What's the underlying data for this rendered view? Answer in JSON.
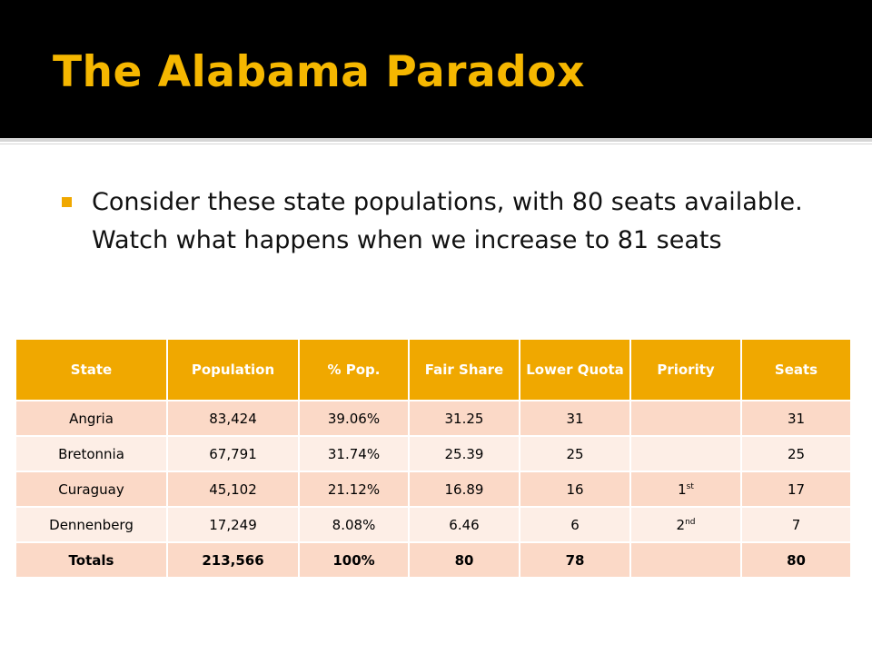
{
  "slide": {
    "title": "The Alabama Paradox",
    "bullet": "Consider these state populations, with 80 seats available.  Watch what happens when we increase to 81 seats"
  },
  "table": {
    "headers": [
      "State",
      "Population",
      "% Pop.",
      "Fair Share",
      "Lower Quota",
      "Priority",
      "Seats"
    ],
    "rows": [
      {
        "state": "Angria",
        "population": "83,424",
        "pct": "39.06%",
        "fair_share": "31.25",
        "lower_quota": "31",
        "priority_num": "",
        "priority_sup": "",
        "seats": "31"
      },
      {
        "state": "Bretonnia",
        "population": "67,791",
        "pct": "31.74%",
        "fair_share": "25.39",
        "lower_quota": "25",
        "priority_num": "",
        "priority_sup": "",
        "seats": "25"
      },
      {
        "state": "Curaguay",
        "population": "45,102",
        "pct": "21.12%",
        "fair_share": "16.89",
        "lower_quota": "16",
        "priority_num": "1",
        "priority_sup": "st",
        "seats": "17"
      },
      {
        "state": "Dennenberg",
        "population": "17,249",
        "pct": "8.08%",
        "fair_share": "6.46",
        "lower_quota": "6",
        "priority_num": "2",
        "priority_sup": "nd",
        "seats": "7"
      }
    ],
    "totals": {
      "label": "Totals",
      "population": "213,566",
      "pct": "100%",
      "fair_share": "80",
      "lower_quota": "78",
      "priority": "",
      "seats": "80"
    }
  },
  "colors": {
    "title": "#f5b700",
    "header_bg": "#f0a800",
    "row_odd": "#fbd9c7",
    "row_even": "#fdeee6",
    "bullet": "#f0a800"
  }
}
